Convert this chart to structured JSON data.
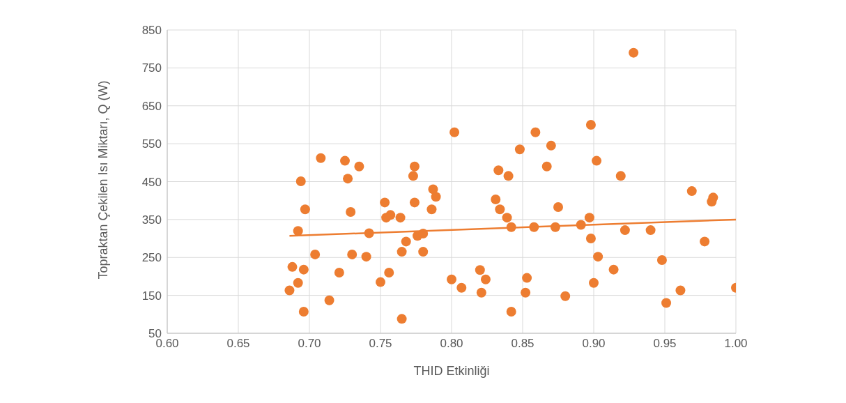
{
  "chart_data": {
    "type": "scatter",
    "xlabel": "THID Etkinliği",
    "ylabel": "Topraktan Çekilen Isı Miktarı, Q (W)",
    "xlim": [
      0.6,
      1.0
    ],
    "xticks": [
      {
        "value": 0.6,
        "label": "0.60"
      },
      {
        "value": 0.65,
        "label": "0.65"
      },
      {
        "value": 0.7,
        "label": "0.70"
      },
      {
        "value": 0.75,
        "label": "0.75"
      },
      {
        "value": 0.8,
        "label": "0.80"
      },
      {
        "value": 0.85,
        "label": "0.85"
      },
      {
        "value": 0.9,
        "label": "0.90"
      },
      {
        "value": 0.95,
        "label": "0.95"
      },
      {
        "value": 1.0,
        "label": "1.00"
      }
    ],
    "ylim": [
      50,
      850
    ],
    "yticks": [
      50,
      150,
      250,
      350,
      450,
      550,
      650,
      750,
      850
    ],
    "grid": true,
    "marker": "circle",
    "legend": false,
    "series": [
      {
        "color": "#ed7d31",
        "x": [
          0.686,
          0.688,
          0.692,
          0.692,
          0.694,
          0.696,
          0.696,
          0.697,
          0.704,
          0.708,
          0.714,
          0.721,
          0.725,
          0.727,
          0.729,
          0.73,
          0.735,
          0.74,
          0.742,
          0.75,
          0.753,
          0.754,
          0.756,
          0.757,
          0.764,
          0.765,
          0.765,
          0.768,
          0.773,
          0.774,
          0.774,
          0.776,
          0.78,
          0.78,
          0.786,
          0.787,
          0.789,
          0.8,
          0.802,
          0.807,
          0.82,
          0.821,
          0.824,
          0.831,
          0.833,
          0.834,
          0.839,
          0.84,
          0.842,
          0.842,
          0.848,
          0.852,
          0.853,
          0.858,
          0.859,
          0.867,
          0.87,
          0.873,
          0.875,
          0.88,
          0.891,
          0.897,
          0.898,
          0.898,
          0.9,
          0.902,
          0.903,
          0.914,
          0.919,
          0.922,
          0.928,
          0.94,
          0.948,
          0.951,
          0.961,
          0.969,
          0.978,
          0.983,
          0.984,
          1.0
        ],
        "values": [
          163,
          225,
          320,
          183,
          451,
          107,
          218,
          377,
          258,
          512,
          137,
          210,
          505,
          458,
          370,
          258,
          490,
          252,
          314,
          185,
          395,
          355,
          210,
          362,
          355,
          265,
          88,
          292,
          465,
          395,
          490,
          307,
          313,
          265,
          377,
          430,
          410,
          192,
          580,
          170,
          217,
          157,
          192,
          403,
          480,
          377,
          355,
          465,
          330,
          107,
          535,
          157,
          196,
          330,
          580,
          490,
          545,
          330,
          383,
          148,
          336,
          355,
          300,
          600,
          183,
          505,
          252,
          218,
          465,
          322,
          790,
          322,
          243,
          130,
          163,
          425,
          292,
          397,
          408,
          170
        ]
      },
      {
        "type": "line",
        "color": "#ed7d31",
        "marker": "none",
        "x": [
          0.686,
          1.0
        ],
        "values": [
          307,
          350
        ]
      }
    ]
  }
}
